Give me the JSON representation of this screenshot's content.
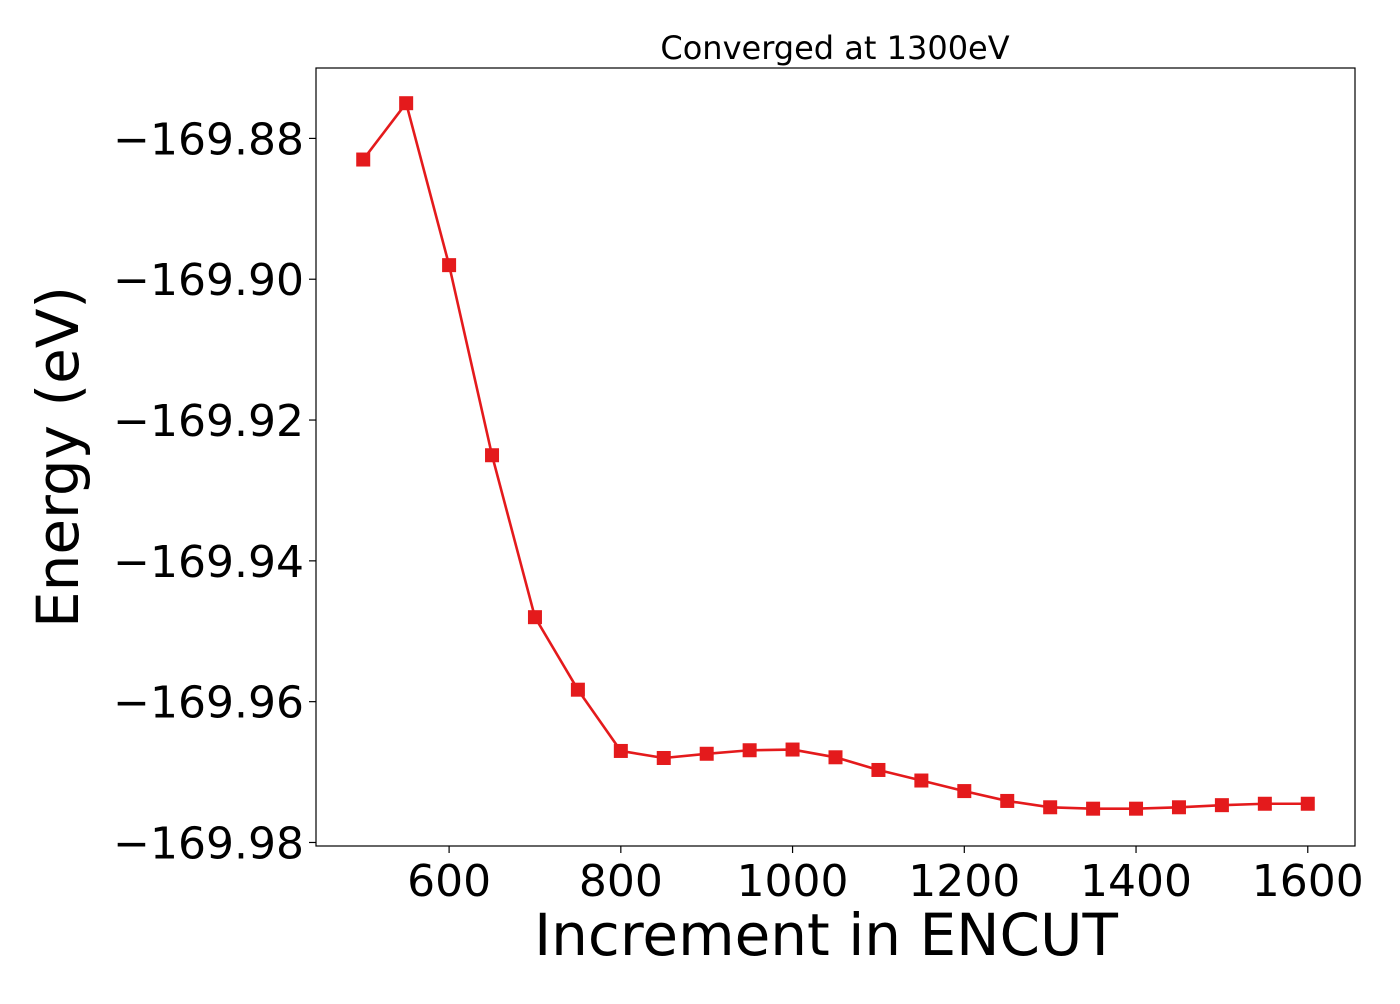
{
  "chart_data": {
    "type": "line",
    "title": "Converged at 1300eV",
    "xlabel": "Increment in ENCUT",
    "ylabel": "Energy (eV)",
    "xlim": [
      445,
      1655
    ],
    "ylim": [
      -169.9805,
      -169.87
    ],
    "xticks": [
      600,
      800,
      1000,
      1200,
      1400,
      1600
    ],
    "xtick_labels": [
      "600",
      "800",
      "1000",
      "1200",
      "1400",
      "1600"
    ],
    "yticks": [
      -169.88,
      -169.9,
      -169.92,
      -169.94,
      -169.96,
      -169.98
    ],
    "ytick_labels": [
      "−169.88",
      "−169.90",
      "−169.92",
      "−169.94",
      "−169.96",
      "−169.98"
    ],
    "grid": false,
    "legend": "none",
    "marker": "square",
    "color": "#e41a1c",
    "series": [
      {
        "x": [
          500,
          550,
          600,
          650,
          700,
          750,
          800,
          850,
          900,
          950,
          1000,
          1050,
          1100,
          1150,
          1200,
          1250,
          1300,
          1350,
          1400,
          1450,
          1500,
          1550,
          1600
        ],
        "y": [
          -169.883,
          -169.875,
          -169.898,
          -169.925,
          -169.948,
          -169.9583,
          -169.967,
          -169.968,
          -169.9674,
          -169.9669,
          -169.9668,
          -169.9679,
          -169.9697,
          -169.9712,
          -169.9727,
          -169.9741,
          -169.975,
          -169.9752,
          -169.9752,
          -169.975,
          -169.9747,
          -169.9745,
          -169.9745
        ]
      }
    ]
  }
}
